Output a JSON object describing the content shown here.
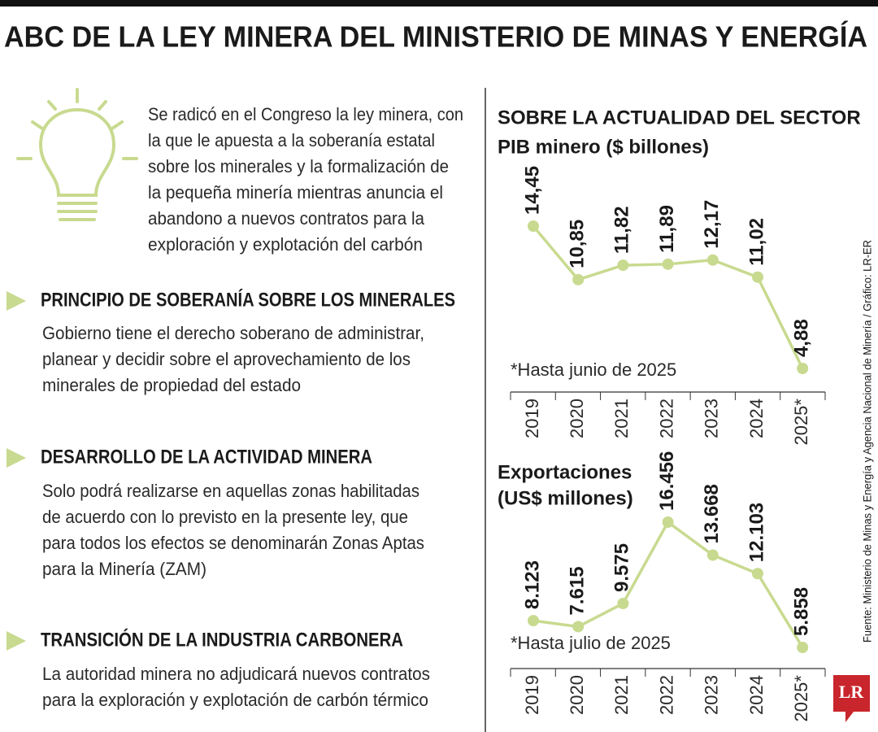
{
  "header": {
    "title": "ABC DE LA LEY MINERA DEL MINISTERIO DE MINAS Y ENERGÍA"
  },
  "intro": [
    "Se radicó en el Congreso la ley minera, con",
    "la que le apuesta a la soberanía estatal",
    "sobre los minerales y la formalización de",
    "la pequeña minería mientras anuncia el",
    "abandono a nuevos contratos para la",
    "exploración y explotación del carbón"
  ],
  "sections": [
    {
      "heading": "PRINCIPIO DE SOBERANÍA SOBRE LOS MINERALES",
      "lines": [
        "Gobierno tiene el derecho soberano de administrar,",
        "planear y decidir sobre el aprovechamiento de los",
        "minerales de propiedad del estado"
      ]
    },
    {
      "heading": "DESARROLLO DE LA ACTIVIDAD MINERA",
      "lines": [
        "Solo podrá realizarse en aquellas zonas habilitadas",
        "de acuerdo con lo previsto en la presente ley, que",
        "para todos los efectos se denominarán Zonas Aptas",
        "para la Minería (ZAM)"
      ]
    },
    {
      "heading": "TRANSICIÓN DE LA INDUSTRIA CARBONERA",
      "lines": [
        "La autoridad minera no adjudicará nuevos contratos",
        "para la exploración y explotación de carbón térmico"
      ]
    }
  ],
  "chart_data": [
    {
      "type": "line",
      "title": "SOBRE LA ACTUALIDAD DEL SECTOR",
      "subtitle": "PIB minero ($ billones)",
      "note": "*Hasta junio de 2025",
      "categories": [
        "2019",
        "2020",
        "2021",
        "2022",
        "2023",
        "2024",
        "2025*"
      ],
      "values": [
        14.45,
        10.85,
        11.82,
        11.89,
        12.17,
        11.02,
        4.88
      ],
      "value_labels": [
        "14,45",
        "10,85",
        "11,82",
        "11,89",
        "12,17",
        "11,02",
        "4,88"
      ],
      "color": "#c8da8f"
    },
    {
      "type": "line",
      "title": "Exportaciones",
      "subtitle": "(US$ millones)",
      "note": "*Hasta julio de 2025",
      "categories": [
        "2019",
        "2020",
        "2021",
        "2022",
        "2023",
        "2024",
        "2025*"
      ],
      "values": [
        8123,
        7615,
        9575,
        16456,
        13668,
        12103,
        5858
      ],
      "value_labels": [
        "8.123",
        "7.615",
        "9.575",
        "16.456",
        "13.668",
        "12.103",
        "5.858"
      ],
      "color": "#c8da8f"
    }
  ],
  "source": "Fuente: Ministerio de Minas y Energía y Agencia Nacional de Minería / Gráfico: LR-ER",
  "logo": "LR"
}
